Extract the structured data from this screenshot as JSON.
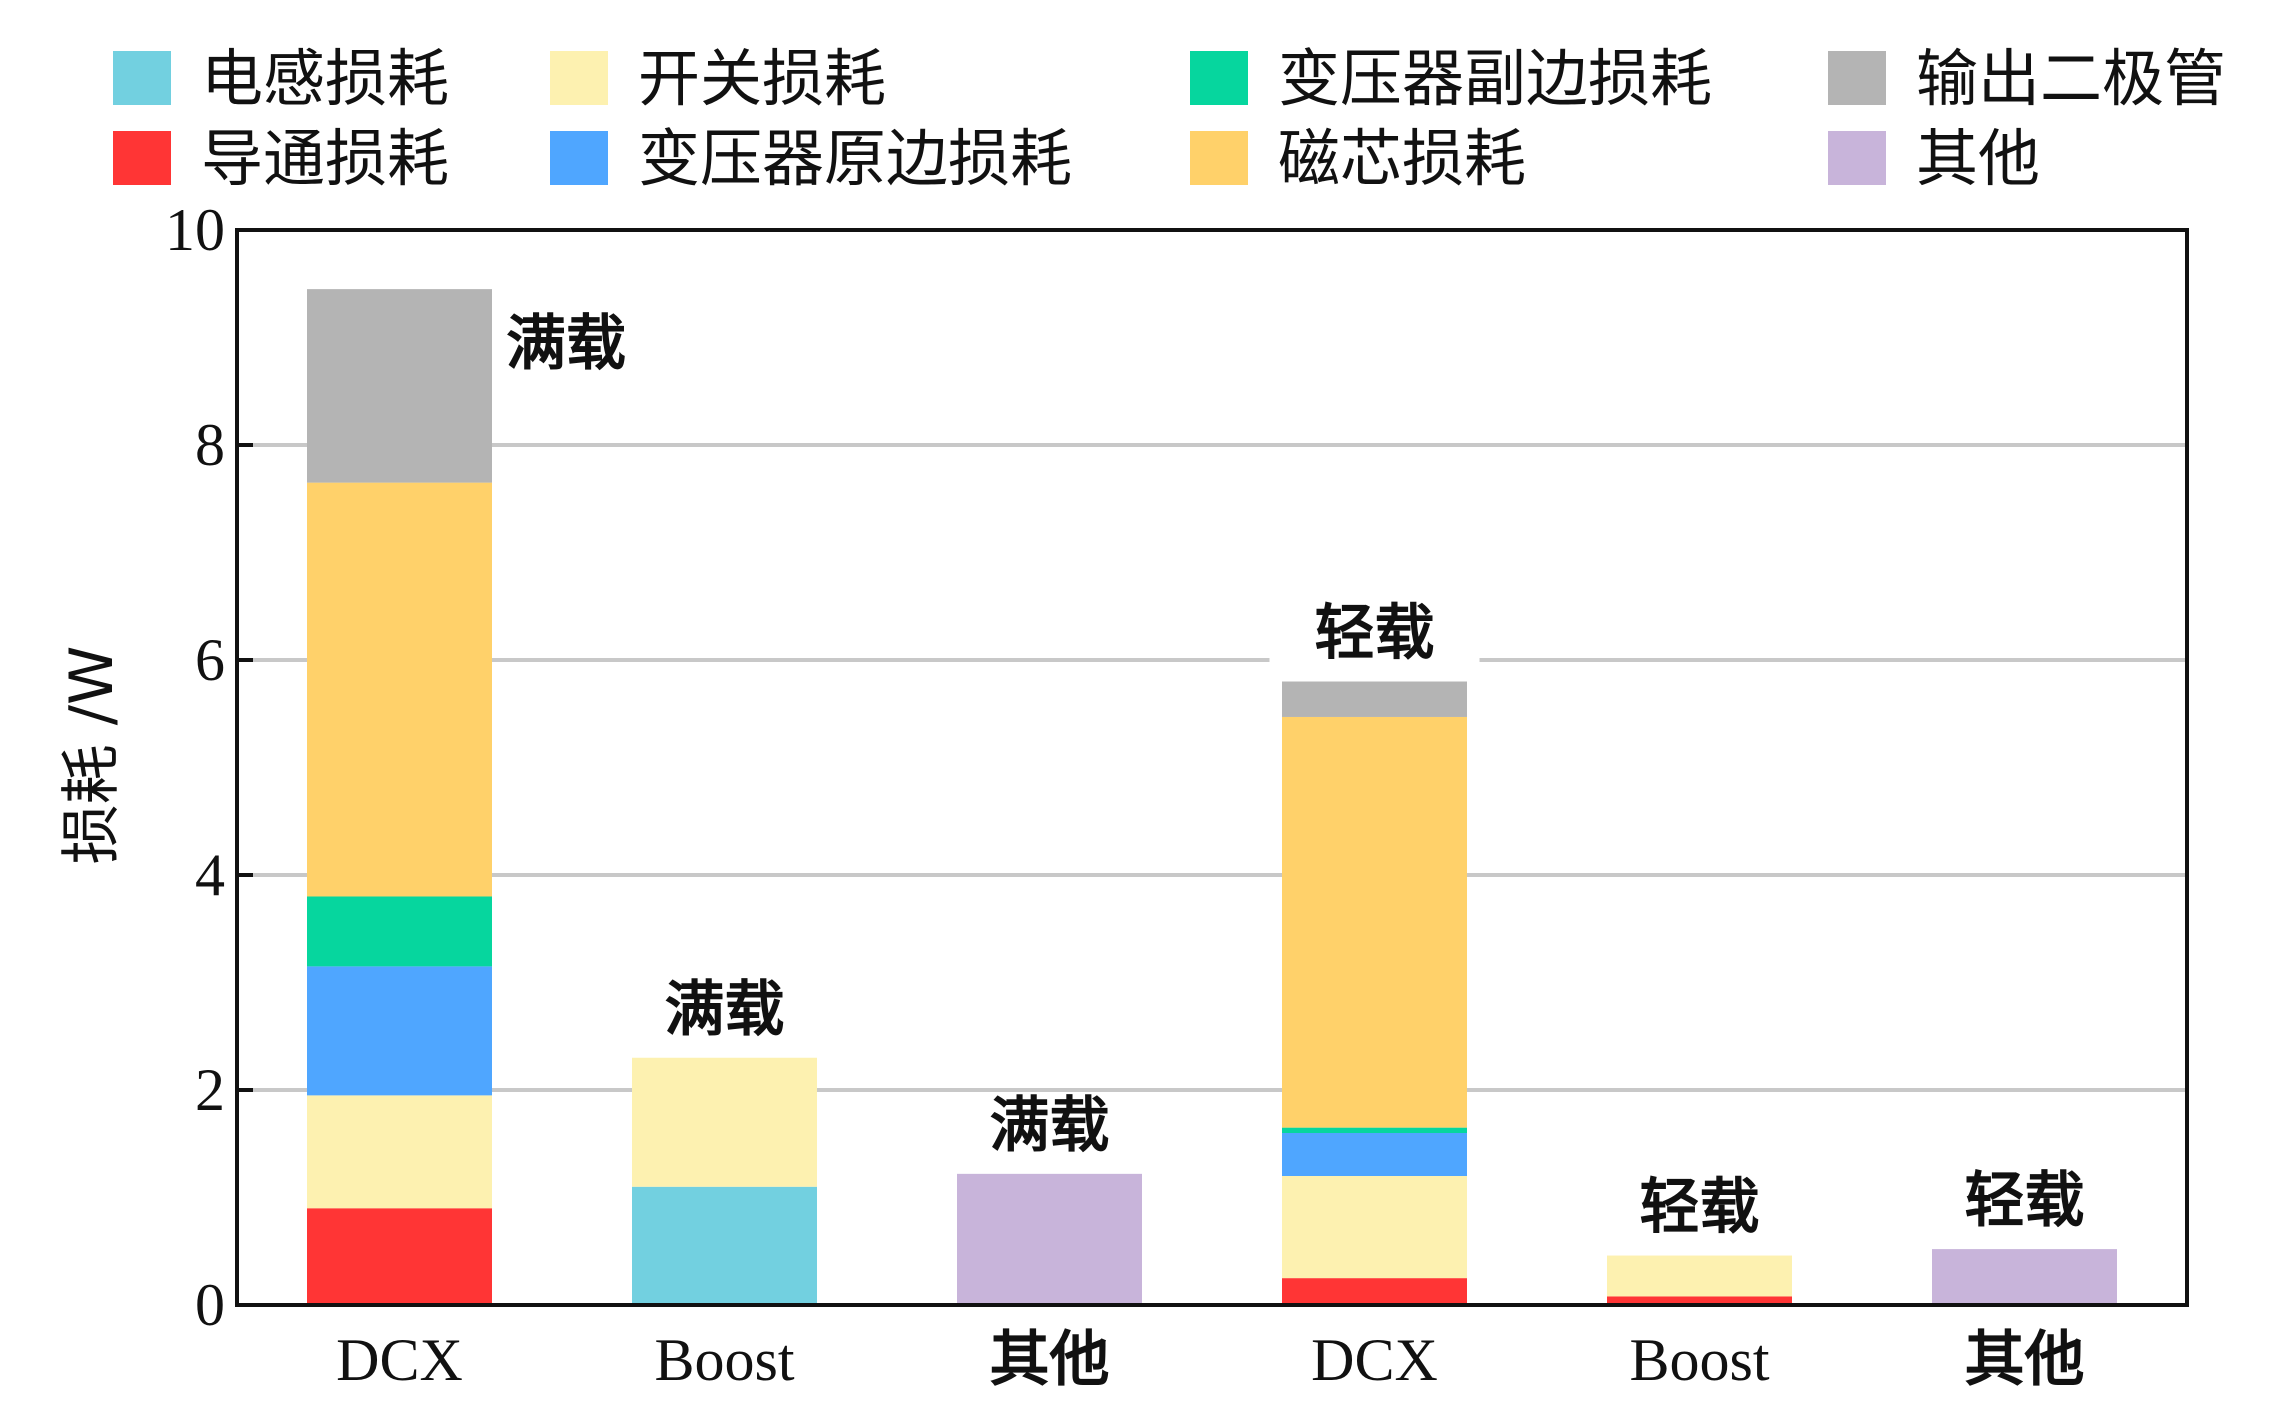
{
  "chart_data": {
    "type": "bar",
    "stacked": true,
    "categories": [
      "DCX",
      "Boost",
      "其他",
      "DCX",
      "Boost",
      "其他"
    ],
    "ylabel": "损耗 /W",
    "xlabel": "",
    "ylim": [
      0,
      10
    ],
    "yticks": [
      "0",
      "2",
      "4",
      "6",
      "8",
      "10"
    ],
    "grid": true,
    "legend_position": "top",
    "annotations": [
      "满载",
      "满载",
      "满载",
      "轻载",
      "轻载",
      "轻载"
    ],
    "series": [
      {
        "name": "导通损耗",
        "color": "#ff3535",
        "values": [
          0.9,
          0.0,
          0,
          0.25,
          0.08,
          0
        ]
      },
      {
        "name": "电感损耗",
        "color": "#72d0e0",
        "values": [
          0,
          1.1,
          0,
          0,
          0,
          0
        ]
      },
      {
        "name": "开关损耗",
        "color": "#fdf1b0",
        "values": [
          1.05,
          1.2,
          0,
          0.95,
          0.38,
          0
        ]
      },
      {
        "name": "变压器原边损耗",
        "color": "#4fa6ff",
        "values": [
          1.2,
          0,
          0,
          0.4,
          0,
          0
        ]
      },
      {
        "name": "变压器副边损耗",
        "color": "#06d69e",
        "values": [
          0.65,
          0,
          0,
          0.05,
          0,
          0
        ]
      },
      {
        "name": "磁芯损耗",
        "color": "#ffd16a",
        "values": [
          3.85,
          0,
          0,
          3.82,
          0,
          0
        ]
      },
      {
        "name": "输出二极管",
        "color": "#b4b4b4",
        "values": [
          1.8,
          0,
          0,
          0.33,
          0,
          0
        ]
      },
      {
        "name": "其他",
        "color": "#c8b4da",
        "values": [
          0,
          0,
          1.22,
          0,
          0,
          0.52
        ]
      }
    ],
    "legend_order": [
      "电感损耗",
      "开关损耗",
      "变压器副边损耗",
      "输出二极管",
      "导通损耗",
      "变压器原边损耗",
      "磁芯损耗",
      "其他"
    ]
  }
}
